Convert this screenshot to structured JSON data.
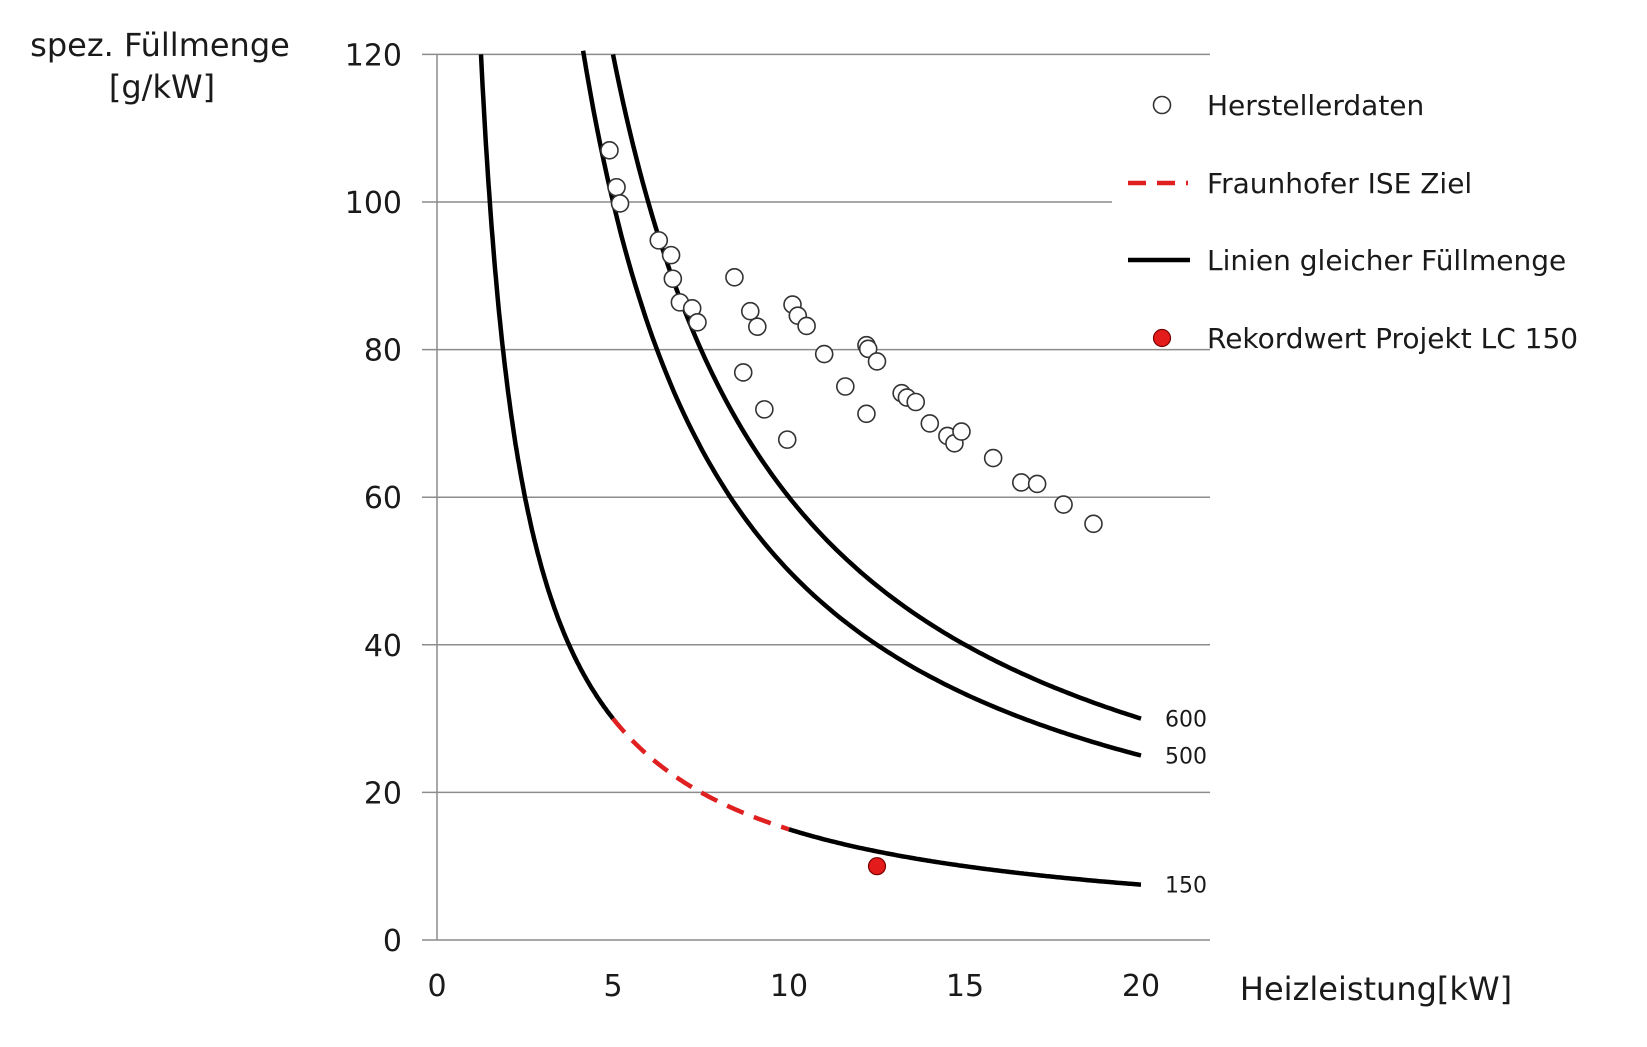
{
  "chart_data": {
    "type": "line",
    "xlabel": "Heizleistung[kW]",
    "ylabel_line1": "spez. Füllmenge",
    "ylabel_line2": "[g/kW]",
    "xlim": [
      0,
      22
    ],
    "ylim": [
      0,
      120
    ],
    "x_ticks": [
      "0",
      "5",
      "10",
      "15",
      "20"
    ],
    "y_ticks": [
      "0",
      "20",
      "40",
      "60",
      "80",
      "100",
      "120"
    ],
    "grid": "horizontal",
    "legend_position": "right",
    "legend": [
      {
        "label": "Herstellerdaten",
        "marker": "open-circle"
      },
      {
        "label": "Fraunhofer ISE Ziel",
        "marker": "red-dashed-line"
      },
      {
        "label": "Linien gleicher Füllmenge",
        "marker": "black-line"
      },
      {
        "label": "Rekordwert Projekt LC 150",
        "marker": "red-dot"
      }
    ],
    "curves": [
      {
        "label": "600",
        "charge_g": 600,
        "x_range": [
          5.0,
          20
        ]
      },
      {
        "label": "500",
        "charge_g": 500,
        "x_range": [
          4.15,
          20
        ]
      },
      {
        "label": "150",
        "charge_g": 150,
        "x_range": [
          1.25,
          20
        ],
        "dashed_range": [
          5,
          10
        ]
      }
    ],
    "series": [
      {
        "name": "Herstellerdaten",
        "points": [
          [
            4.9,
            107
          ],
          [
            5.1,
            102
          ],
          [
            5.2,
            99.8
          ],
          [
            6.3,
            94.8
          ],
          [
            6.65,
            92.8
          ],
          [
            6.7,
            89.6
          ],
          [
            6.9,
            86.4
          ],
          [
            7.25,
            85.6
          ],
          [
            7.4,
            83.7
          ],
          [
            8.45,
            89.8
          ],
          [
            8.9,
            85.2
          ],
          [
            9.1,
            83.1
          ],
          [
            8.7,
            76.9
          ],
          [
            9.3,
            71.9
          ],
          [
            9.95,
            67.8
          ],
          [
            10.1,
            86.1
          ],
          [
            10.25,
            84.6
          ],
          [
            10.5,
            83.2
          ],
          [
            11.0,
            79.4
          ],
          [
            11.6,
            75.0
          ],
          [
            12.2,
            80.6
          ],
          [
            12.25,
            80.1
          ],
          [
            12.5,
            78.4
          ],
          [
            12.2,
            71.3
          ],
          [
            13.2,
            74.1
          ],
          [
            13.35,
            73.5
          ],
          [
            13.6,
            72.9
          ],
          [
            14.0,
            70.0
          ],
          [
            14.5,
            68.3
          ],
          [
            14.7,
            67.3
          ],
          [
            14.9,
            68.9
          ],
          [
            15.8,
            65.3
          ],
          [
            16.6,
            62.0
          ],
          [
            17.05,
            61.8
          ],
          [
            17.8,
            59.0
          ],
          [
            18.65,
            56.4
          ]
        ]
      },
      {
        "name": "Rekordwert Projekt LC 150",
        "points": [
          [
            12.5,
            10
          ]
        ]
      }
    ]
  }
}
